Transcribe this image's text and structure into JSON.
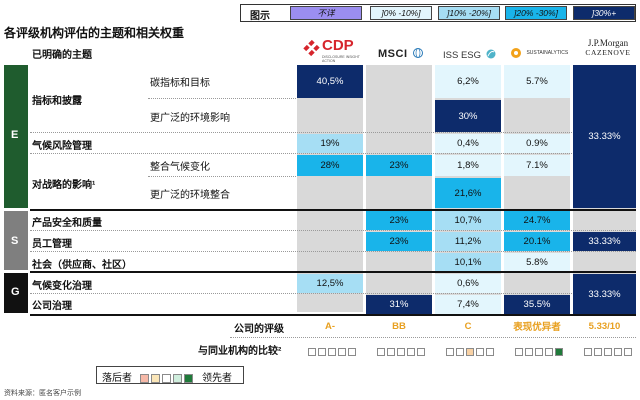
{
  "title": "各评级机构评估的主题和相关权重",
  "subtitle": "已明确的主题",
  "legend": {
    "label": "图示",
    "items": [
      {
        "text": "不详",
        "color": "#9b8ef0"
      },
      {
        "text": "]0% -10%]",
        "color": "#e3f6fd"
      },
      {
        "text": "]10% -20%]",
        "color": "#a6def4"
      },
      {
        "text": "]20% -30%]",
        "color": "#19b4ea"
      },
      {
        "text": "]30%+",
        "color": "#0d2b6b"
      }
    ]
  },
  "agencies": [
    {
      "name": "CDP",
      "tagline": "DISCLOSURE INSIGHT ACTION"
    },
    {
      "name": "MSCI"
    },
    {
      "name": "ISS ESG"
    },
    {
      "name": "SUSTAINALYTICS"
    },
    {
      "name": "J.P.Morgan",
      "sub": "CAZENOVE"
    }
  ],
  "groups": [
    "E",
    "S",
    "G"
  ],
  "categories": [
    "指标和披露",
    "气候风险管理",
    "对战略的影响¹",
    "产品安全和质量",
    "员工管理",
    "社会（供应商、社区）",
    "气候变化治理",
    "公司治理"
  ],
  "rows": [
    {
      "sub": "碳指标和目标",
      "values": [
        "40,5%",
        "",
        "6,2%",
        "5.7%"
      ]
    },
    {
      "sub": "更广泛的环境影响",
      "values": [
        "",
        "",
        "30%",
        ""
      ]
    },
    {
      "sub": "",
      "values": [
        "19%",
        "",
        "0,4%",
        "0.9%"
      ]
    },
    {
      "sub": "整合气候变化",
      "values": [
        "28%",
        "23%",
        "1,8%",
        "7.1%"
      ]
    },
    {
      "sub": "更广泛的环境整合",
      "values": [
        "",
        "",
        "21,6%",
        ""
      ]
    },
    {
      "sub": "",
      "values": [
        "",
        "23%",
        "10,7%",
        "24.7%"
      ]
    },
    {
      "sub": "",
      "values": [
        "",
        "23%",
        "11,2%",
        "20.1%"
      ]
    },
    {
      "sub": "",
      "values": [
        "",
        "",
        "10,1%",
        "5.8%"
      ]
    },
    {
      "sub": "",
      "values": [
        "12,5%",
        "",
        "0,6%",
        ""
      ]
    },
    {
      "sub": "",
      "values": [
        "",
        "31%",
        "7,4%",
        "35.5%"
      ]
    }
  ],
  "jpm_values": [
    "33.33%",
    "33.33%",
    "33.33%"
  ],
  "rating": {
    "label": "公司的评级",
    "values": [
      "A-",
      "BB",
      "C",
      "表现优异者",
      "5.33/10"
    ],
    "color": "#e8a020"
  },
  "comparison": {
    "label": "与同业机构的比较²"
  },
  "bottom_legend": {
    "laggard": "落后者",
    "leader": "领先者"
  },
  "source": "资料来源：匿名客户示例",
  "colors": {
    "dark_navy": "#0d2b6b",
    "mid_blue": "#19b4ea",
    "light_blue": "#a6def4",
    "pale_blue": "#e3f6fd",
    "grey": "#d9d9d9",
    "green": "#1f5c2e"
  }
}
